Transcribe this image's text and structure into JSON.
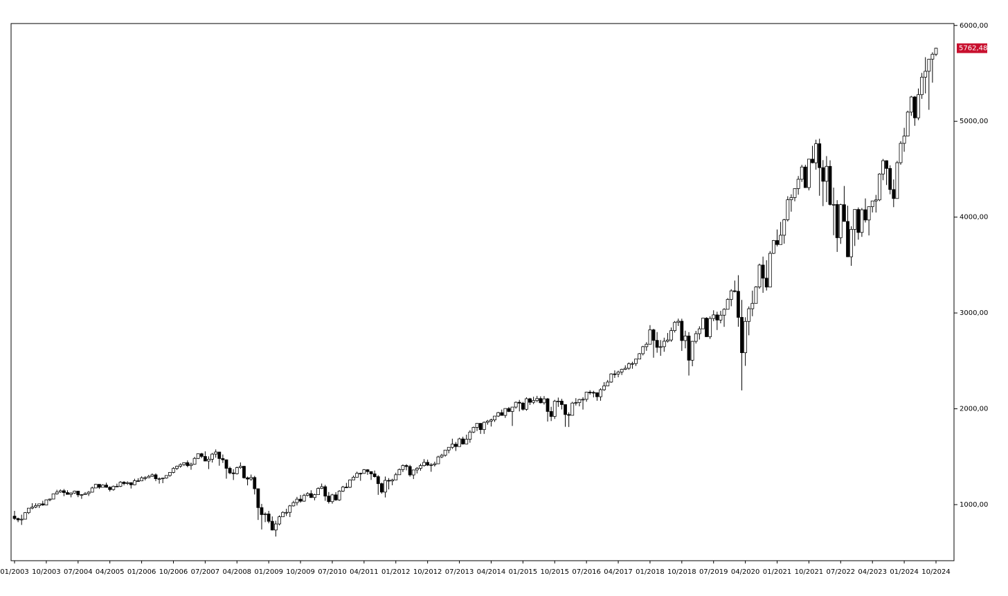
{
  "chart_data": {
    "type": "candlestick",
    "categories": [
      "01/2003",
      null,
      null,
      null,
      null,
      null,
      null,
      null,
      null,
      "10/2003",
      null,
      null,
      null,
      null,
      null,
      null,
      null,
      null,
      "07/2004",
      null,
      null,
      null,
      null,
      null,
      null,
      null,
      null,
      "04/2005",
      null,
      null,
      null,
      null,
      null,
      null,
      null,
      null,
      "01/2006",
      null,
      null,
      null,
      null,
      null,
      null,
      null,
      null,
      "10/2006",
      null,
      null,
      null,
      null,
      null,
      null,
      null,
      null,
      "07/2007",
      null,
      null,
      null,
      null,
      null,
      null,
      null,
      null,
      "04/2008",
      null,
      null,
      null,
      null,
      null,
      null,
      null,
      null,
      "01/2009",
      null,
      null,
      null,
      null,
      null,
      null,
      null,
      null,
      "10/2009",
      null,
      null,
      null,
      null,
      null,
      null,
      null,
      null,
      "07/2010",
      null,
      null,
      null,
      null,
      null,
      null,
      null,
      null,
      "04/2011",
      null,
      null,
      null,
      null,
      null,
      null,
      null,
      null,
      "01/2012",
      null,
      null,
      null,
      null,
      null,
      null,
      null,
      null,
      "10/2012",
      null,
      null,
      null,
      null,
      null,
      null,
      null,
      null,
      "07/2013",
      null,
      null,
      null,
      null,
      null,
      null,
      null,
      null,
      "04/2014",
      null,
      null,
      null,
      null,
      null,
      null,
      null,
      null,
      "01/2015",
      null,
      null,
      null,
      null,
      null,
      null,
      null,
      null,
      "10/2015",
      null,
      null,
      null,
      null,
      null,
      null,
      null,
      null,
      "07/2016",
      null,
      null,
      null,
      null,
      null,
      null,
      null,
      null,
      "04/2017",
      null,
      null,
      null,
      null,
      null,
      null,
      null,
      null,
      "01/2018",
      null,
      null,
      null,
      null,
      null,
      null,
      null,
      null,
      "10/2018",
      null,
      null,
      null,
      null,
      null,
      null,
      null,
      null,
      "07/2019",
      null,
      null,
      null,
      null,
      null,
      null,
      null,
      null,
      "04/2020",
      null,
      null,
      null,
      null,
      null,
      null,
      null,
      null,
      "01/2021",
      null,
      null,
      null,
      null,
      null,
      null,
      null,
      null,
      "10/2021",
      null,
      null,
      null,
      null,
      null,
      null,
      null,
      null,
      "07/2022",
      null,
      null,
      null,
      null,
      null,
      null,
      null,
      null,
      "04/2023",
      null,
      null,
      null,
      null,
      null,
      null,
      null,
      null,
      "01/2024",
      null,
      null,
      null,
      null,
      null,
      null,
      null,
      null,
      "10/2024"
    ],
    "open": [
      880,
      855,
      841,
      848,
      916,
      963,
      974,
      990,
      1008,
      996,
      1050,
      1058,
      1112,
      1131,
      1145,
      1126,
      1107,
      1121,
      1141,
      1102,
      1104,
      1115,
      1130,
      1174,
      1212,
      1181,
      1204,
      1181,
      1157,
      1191,
      1191,
      1234,
      1220,
      1229,
      1207,
      1249,
      1248,
      1280,
      1281,
      1295,
      1311,
      1270,
      1270,
      1277,
      1304,
      1336,
      1378,
      1401,
      1418,
      1438,
      1407,
      1421,
      1482,
      1531,
      1503,
      1455,
      1474,
      1527,
      1549,
      1481,
      1468,
      1379,
      1331,
      1323,
      1386,
      1400,
      1280,
      1267,
      1283,
      1166,
      969,
      896,
      903,
      826,
      735,
      798,
      873,
      919,
      919,
      987,
      1021,
      1057,
      1036,
      1096,
      1115,
      1074,
      1104,
      1169,
      1187,
      1089,
      1031,
      1102,
      1049,
      1141,
      1183,
      1181,
      1258,
      1286,
      1327,
      1326,
      1364,
      1345,
      1321,
      1292,
      1219,
      1131,
      1253,
      1247,
      1258,
      1312,
      1366,
      1408,
      1398,
      1310,
      1362,
      1379,
      1407,
      1441,
      1412,
      1416,
      1426,
      1498,
      1515,
      1569,
      1598,
      1631,
      1606,
      1686,
      1633,
      1682,
      1757,
      1806,
      1848,
      1783,
      1859,
      1872,
      1884,
      1924,
      1960,
      1931,
      2003,
      1972,
      2018,
      2068,
      2059,
      1995,
      2105,
      2068,
      2086,
      2107,
      2063,
      2104,
      1972,
      1920,
      2079,
      2080,
      2044,
      1940,
      1932,
      2060,
      2065,
      2097,
      2099,
      2174,
      2171,
      2168,
      2126,
      2199,
      2239,
      2279,
      2364,
      2363,
      2384,
      2412,
      2423,
      2470,
      2472,
      2519,
      2575,
      2648,
      2674,
      2824,
      2714,
      2641,
      2648,
      2705,
      2718,
      2816,
      2902,
      2914,
      2712,
      2760,
      2507,
      2704,
      2784,
      2834,
      2946,
      2752,
      2942,
      2980,
      2926,
      2977,
      3038,
      3141,
      3231,
      3226,
      2954,
      2585,
      2912,
      3044,
      3100,
      3271,
      3500,
      3363,
      3270,
      3622,
      3756,
      3714,
      3811,
      3973,
      4181,
      4204,
      4298,
      4395,
      4523,
      4308,
      4605,
      4567,
      4766,
      4516,
      4374,
      4530,
      4132,
      4132,
      3785,
      4130,
      3955,
      3586,
      3872,
      4080,
      3840,
      4077,
      3970,
      4109,
      4169,
      4180,
      4450,
      4589,
      4508,
      4288,
      4194,
      4568,
      4770,
      4846,
      5096,
      5254,
      5036,
      5278,
      5460,
      5522,
      5648,
      5700
    ],
    "high": [
      935,
      864,
      895,
      922,
      965,
      1015,
      1015,
      1011,
      1040,
      1054,
      1063,
      1112,
      1155,
      1159,
      1163,
      1150,
      1128,
      1146,
      1141,
      1109,
      1131,
      1142,
      1188,
      1217,
      1212,
      1212,
      1229,
      1192,
      1199,
      1219,
      1245,
      1245,
      1243,
      1233,
      1270,
      1276,
      1295,
      1297,
      1311,
      1326,
      1326,
      1284,
      1280,
      1306,
      1340,
      1390,
      1407,
      1431,
      1441,
      1461,
      1438,
      1498,
      1532,
      1540,
      1556,
      1504,
      1539,
      1576,
      1545,
      1523,
      1471,
      1396,
      1370,
      1397,
      1440,
      1405,
      1293,
      1314,
      1300,
      1167,
      1008,
      919,
      935,
      877,
      832,
      888,
      930,
      957,
      997,
      1040,
      1081,
      1101,
      1113,
      1130,
      1150,
      1113,
      1180,
      1220,
      1206,
      1132,
      1113,
      1130,
      1150,
      1196,
      1227,
      1263,
      1303,
      1344,
      1333,
      1371,
      1370,
      1346,
      1356,
      1308,
      1230,
      1293,
      1277,
      1270,
      1333,
      1378,
      1420,
      1422,
      1415,
      1363,
      1392,
      1427,
      1475,
      1470,
      1434,
      1448,
      1510,
      1530,
      1570,
      1598,
      1688,
      1654,
      1698,
      1709,
      1730,
      1776,
      1814,
      1849,
      1850,
      1867,
      1884,
      1897,
      1924,
      1968,
      1992,
      2005,
      2019,
      2018,
      2076,
      2093,
      2072,
      2120,
      2114,
      2126,
      2135,
      2130,
      2133,
      2113,
      2021,
      2094,
      2117,
      2104,
      2044,
      1963,
      2073,
      2111,
      2104,
      2121,
      2178,
      2194,
      2188,
      2169,
      2214,
      2278,
      2301,
      2371,
      2401,
      2398,
      2418,
      2454,
      2484,
      2491,
      2520,
      2582,
      2657,
      2695,
      2873,
      2835,
      2801,
      2717,
      2742,
      2791,
      2848,
      2916,
      2941,
      2940,
      2815,
      2800,
      2708,
      2813,
      2861,
      2949,
      2955,
      2965,
      3028,
      3013,
      3022,
      3050,
      3155,
      3248,
      3338,
      3394,
      3136,
      2955,
      3068,
      3233,
      3280,
      3515,
      3588,
      3550,
      3646,
      3761,
      3871,
      3950,
      3983,
      4218,
      4238,
      4302,
      4429,
      4546,
      4546,
      4608,
      4744,
      4808,
      4818,
      4595,
      4637,
      4593,
      4308,
      4177,
      4140,
      4325,
      4119,
      3905,
      4080,
      4101,
      4095,
      4195,
      4110,
      4170,
      4232,
      4458,
      4607,
      4593,
      4541,
      4393,
      4587,
      4793,
      4932,
      5111,
      5265,
      5264,
      5342,
      5505,
      5669,
      5651,
      5720,
      5767
    ],
    "low": [
      840,
      817,
      788,
      847,
      902,
      952,
      963,
      965,
      988,
      996,
      1035,
      1058,
      1105,
      1124,
      1088,
      1107,
      1076,
      1113,
      1078,
      1060,
      1102,
      1090,
      1127,
      1173,
      1164,
      1180,
      1176,
      1137,
      1146,
      1188,
      1183,
      1201,
      1205,
      1168,
      1202,
      1246,
      1245,
      1253,
      1277,
      1290,
      1245,
      1219,
      1224,
      1271,
      1291,
      1327,
      1361,
      1385,
      1403,
      1390,
      1364,
      1416,
      1476,
      1485,
      1453,
      1371,
      1439,
      1490,
      1406,
      1435,
      1271,
      1317,
      1257,
      1315,
      1374,
      1272,
      1201,
      1248,
      1106,
      840,
      741,
      817,
      805,
      731,
      667,
      784,
      880,
      882,
      870,
      980,
      991,
      1020,
      1030,
      1086,
      1071,
      1045,
      1101,
      1163,
      1040,
      1011,
      1010,
      1040,
      1040,
      1132,
      1173,
      1174,
      1256,
      1286,
      1249,
      1323,
      1311,
      1258,
      1282,
      1102,
      1114,
      1075,
      1159,
      1202,
      1258,
      1312,
      1340,
      1358,
      1292,
      1267,
      1325,
      1354,
      1397,
      1403,
      1343,
      1398,
      1426,
      1485,
      1501,
      1536,
      1581,
      1560,
      1605,
      1627,
      1633,
      1646,
      1746,
      1768,
      1738,
      1738,
      1834,
      1815,
      1863,
      1915,
      1931,
      1905,
      1965,
      1821,
      2001,
      1973,
      1981,
      1980,
      2040,
      2049,
      2068,
      2056,
      2044,
      1867,
      1872,
      1894,
      2020,
      1993,
      1812,
      1810,
      1931,
      2034,
      2026,
      1992,
      2074,
      2148,
      2119,
      2084,
      2084,
      2187,
      2245,
      2271,
      2322,
      2329,
      2353,
      2405,
      2407,
      2418,
      2447,
      2520,
      2557,
      2605,
      2683,
      2533,
      2585,
      2553,
      2595,
      2692,
      2699,
      2796,
      2864,
      2604,
      2631,
      2347,
      2444,
      2681,
      2723,
      2848,
      2750,
      2729,
      2914,
      2822,
      2892,
      2855,
      3050,
      3070,
      3214,
      2856,
      2192,
      2448,
      2767,
      2966,
      3101,
      3252,
      3210,
      3234,
      3280,
      3616,
      3694,
      3726,
      3723,
      3955,
      4057,
      4165,
      4234,
      4367,
      4306,
      4279,
      4561,
      4495,
      4223,
      4115,
      4157,
      4121,
      3811,
      3637,
      3721,
      3955,
      3584,
      3492,
      3699,
      3765,
      3794,
      3944,
      3809,
      4049,
      4048,
      4167,
      4385,
      4335,
      4238,
      4104,
      4194,
      4547,
      4682,
      4853,
      5057,
      4953,
      5012,
      5234,
      5291,
      5120,
      5403,
      5680
    ],
    "close": [
      855,
      841,
      848,
      916,
      963,
      974,
      990,
      1008,
      996,
      1050,
      1058,
      1112,
      1131,
      1145,
      1126,
      1107,
      1121,
      1141,
      1102,
      1104,
      1115,
      1130,
      1174,
      1212,
      1181,
      1204,
      1181,
      1157,
      1191,
      1191,
      1234,
      1220,
      1229,
      1207,
      1249,
      1248,
      1280,
      1281,
      1295,
      1311,
      1270,
      1270,
      1277,
      1304,
      1336,
      1378,
      1401,
      1418,
      1438,
      1407,
      1421,
      1482,
      1531,
      1503,
      1455,
      1474,
      1527,
      1549,
      1481,
      1468,
      1379,
      1331,
      1323,
      1386,
      1400,
      1280,
      1267,
      1283,
      1166,
      969,
      896,
      903,
      826,
      735,
      798,
      873,
      919,
      919,
      987,
      1021,
      1057,
      1036,
      1096,
      1115,
      1074,
      1104,
      1169,
      1187,
      1089,
      1031,
      1102,
      1049,
      1141,
      1183,
      1181,
      1258,
      1286,
      1327,
      1326,
      1364,
      1345,
      1321,
      1292,
      1219,
      1131,
      1253,
      1247,
      1258,
      1312,
      1366,
      1408,
      1398,
      1310,
      1362,
      1379,
      1407,
      1441,
      1412,
      1416,
      1426,
      1498,
      1515,
      1569,
      1598,
      1631,
      1606,
      1686,
      1633,
      1682,
      1757,
      1806,
      1848,
      1783,
      1859,
      1872,
      1884,
      1924,
      1960,
      1931,
      2003,
      1972,
      2018,
      2068,
      2059,
      1995,
      2105,
      2068,
      2086,
      2107,
      2063,
      2104,
      1972,
      1920,
      2079,
      2080,
      2044,
      1940,
      1932,
      2060,
      2065,
      2097,
      2099,
      2174,
      2171,
      2168,
      2126,
      2199,
      2239,
      2279,
      2364,
      2363,
      2384,
      2412,
      2423,
      2470,
      2472,
      2519,
      2575,
      2648,
      2674,
      2824,
      2714,
      2641,
      2648,
      2705,
      2718,
      2816,
      2902,
      2914,
      2712,
      2760,
      2507,
      2704,
      2784,
      2834,
      2946,
      2752,
      2942,
      2980,
      2926,
      2977,
      3038,
      3141,
      3231,
      3226,
      2954,
      2585,
      2912,
      3044,
      3100,
      3271,
      3500,
      3363,
      3270,
      3622,
      3756,
      3714,
      3811,
      3973,
      4181,
      4204,
      4298,
      4395,
      4523,
      4308,
      4605,
      4567,
      4766,
      4516,
      4374,
      4530,
      4132,
      4132,
      3785,
      4130,
      3955,
      3586,
      3872,
      4080,
      3840,
      4077,
      3970,
      4109,
      4169,
      4180,
      4450,
      4589,
      4508,
      4288,
      4194,
      4568,
      4770,
      4846,
      5096,
      5254,
      5036,
      5278,
      5460,
      5522,
      5648,
      5700,
      5762.48
    ],
    "up_color": "#ffffff",
    "down_color": "#000000",
    "edge_color": "#000000",
    "last_price": {
      "value": 5762.48,
      "label": "5762,48"
    },
    "last_price_color": "#c8102e",
    "ylim": [
      415,
      6020
    ],
    "yticks": [
      {
        "value": 1000,
        "label": "1000,00"
      },
      {
        "value": 2000,
        "label": "2000,00"
      },
      {
        "value": 3000,
        "label": "3000,00"
      },
      {
        "value": 4000,
        "label": "4000,00"
      },
      {
        "value": 5000,
        "label": "5000,00"
      },
      {
        "value": 6000,
        "label": "6000,00"
      }
    ]
  }
}
